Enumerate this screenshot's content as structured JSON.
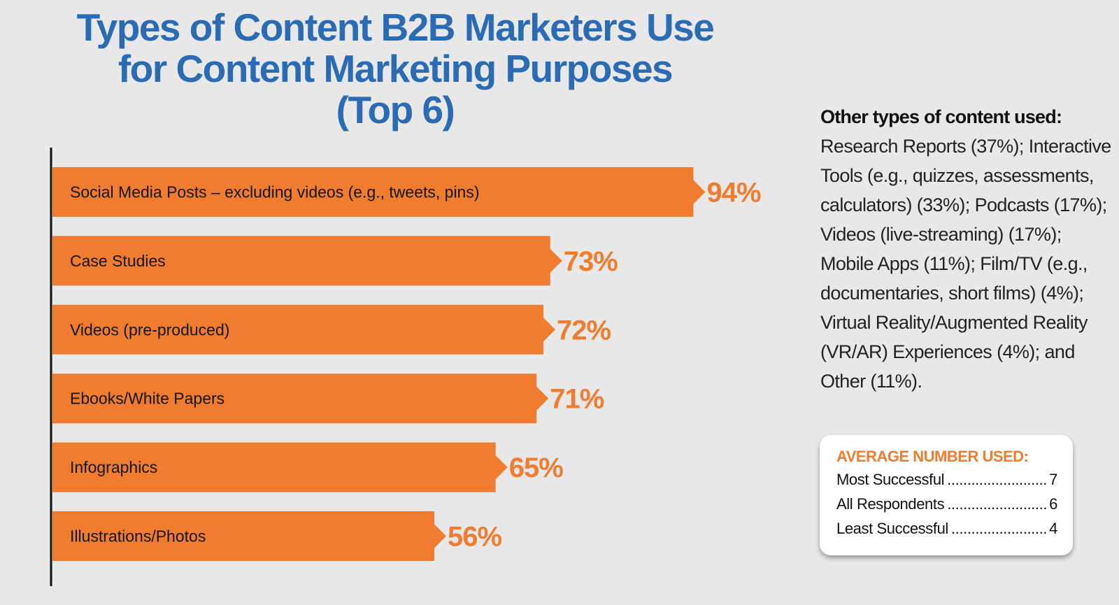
{
  "title": {
    "line1": "Types of Content B2B Marketers Use",
    "line2": "for Content Marketing Purposes",
    "line3": "(Top 6)"
  },
  "colors": {
    "title": "#2b6bb3",
    "bar": "#f07c2f",
    "value_label": "#f07c2f",
    "axis": "#111111",
    "background": "#e8e8e8"
  },
  "chart_data": {
    "type": "bar",
    "orientation": "horizontal",
    "title": "Types of Content B2B Marketers Use for Content Marketing Purposes (Top 6)",
    "categories": [
      "Social Media Posts – excluding videos (e.g., tweets, pins)",
      "Case Studies",
      "Videos (pre-produced)",
      "Ebooks/White Papers",
      "Infographics",
      "Illustrations/Photos"
    ],
    "values": [
      94,
      73,
      72,
      71,
      65,
      56
    ],
    "value_labels": [
      "94%",
      "73%",
      "72%",
      "71%",
      "65%",
      "56%"
    ],
    "unit": "%",
    "xlim": [
      0,
      100
    ],
    "grid": false,
    "legend": "none"
  },
  "other_types": {
    "heading": "Other types of content used:",
    "lines": [
      "Research Reports (37%); Interactive",
      "Tools (e.g., quizzes, assessments,",
      "calculators) (33%); Podcasts (17%);",
      "Videos (live-streaming) (17%);",
      "Mobile Apps (11%); Film/TV (e.g.,",
      "documentaries, short films) (4%);",
      "Virtual Reality/Augmented Reality",
      "(VR/AR) Experiences (4%); and",
      "Other (11%)."
    ]
  },
  "average_box": {
    "title": "AVERAGE NUMBER USED:",
    "rows": [
      {
        "label": "Most Successful",
        "value": "7"
      },
      {
        "label": "All Respondents",
        "value": "6"
      },
      {
        "label": "Least Successful",
        "value": "4"
      }
    ]
  }
}
